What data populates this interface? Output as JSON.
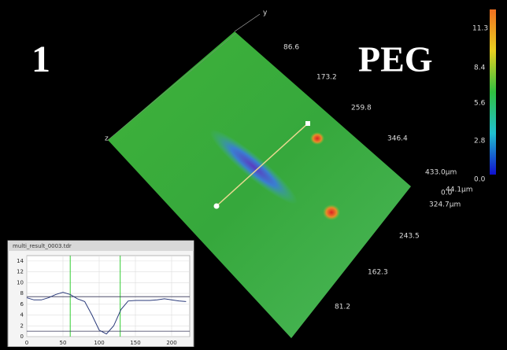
{
  "overlay": {
    "sample_number": "1",
    "sample_label": "PEG"
  },
  "axes_3d": {
    "y_label": "y",
    "z_label": "z",
    "top_edge_labels": [
      "86.6",
      "173.2",
      "259.8",
      "346.4",
      "433.0µm"
    ],
    "corner_labels": [
      "0.0",
      "44.1µm"
    ],
    "right_edge_labels": [
      "324.7µm",
      "243.5",
      "162.3",
      "81.2"
    ]
  },
  "color_scale": {
    "labels": [
      "11.3",
      "8.4",
      "5.6",
      "2.8",
      "0.0"
    ]
  },
  "profile_window": {
    "title": "multi_result_0003.tdr",
    "chart": {
      "type": "line",
      "x": [
        0,
        10,
        20,
        30,
        40,
        50,
        60,
        70,
        80,
        90,
        100,
        110,
        120,
        130,
        140,
        150,
        160,
        170,
        180,
        190,
        200,
        210,
        220
      ],
      "values": [
        7.2,
        6.8,
        6.8,
        7.2,
        7.8,
        8.2,
        7.8,
        7.0,
        6.5,
        4.0,
        1.2,
        0.5,
        2.0,
        5.0,
        6.6,
        6.7,
        6.7,
        6.7,
        6.8,
        7.0,
        6.8,
        6.6,
        6.5
      ],
      "color": "#2a3a7a",
      "xlim": [
        0,
        225
      ],
      "ylim": [
        0,
        15
      ],
      "xticks": [
        0,
        50,
        100,
        150,
        200
      ],
      "yticks": [
        0,
        2,
        4,
        6,
        8,
        10,
        12,
        14
      ],
      "cursor_x": [
        60,
        129
      ],
      "cursor_y": [
        7.4,
        1.0
      ],
      "grid": true
    }
  }
}
